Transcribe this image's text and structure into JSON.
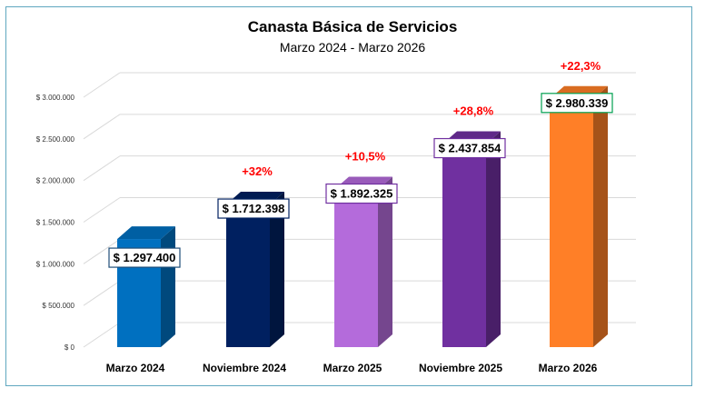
{
  "chart_data": {
    "type": "bar",
    "title": "Canasta Básica de Servicios",
    "subtitle": "Marzo 2024 - Marzo 2026",
    "categories": [
      "Marzo 2024",
      "Noviembre 2024",
      "Marzo 2025",
      "Noviembre 2025",
      "Marzo 2026"
    ],
    "values": [
      1297400,
      1712398,
      1892325,
      2437854,
      2980339
    ],
    "value_labels": [
      "$ 1.297.400",
      "$ 1.712.398",
      "$ 1.892.325",
      "$ 2.437.854",
      "$ 2.980.339"
    ],
    "growth_labels": [
      "",
      "+32%",
      "+10,5%",
      "+28,8%",
      "+22,3%"
    ],
    "yticks": [
      0,
      500000,
      1000000,
      1500000,
      2000000,
      2500000,
      3000000
    ],
    "ytick_labels": [
      "$ 0",
      "$ 500.000",
      "$ 1.000.000",
      "$ 1.500.000",
      "$ 2.000.000",
      "$ 2.500.000",
      "$ 3.000.000"
    ],
    "ylim": [
      0,
      3000000
    ],
    "xlabel": "",
    "ylabel": "",
    "grid": true,
    "bar_colors": [
      "#0070c0",
      "#002060",
      "#b46bdb",
      "#7030a0",
      "#ff7f27"
    ],
    "label_border_colors": [
      "#1f4e79",
      "#002060",
      "#7030a0",
      "#7030a0",
      "#00a050"
    ]
  }
}
